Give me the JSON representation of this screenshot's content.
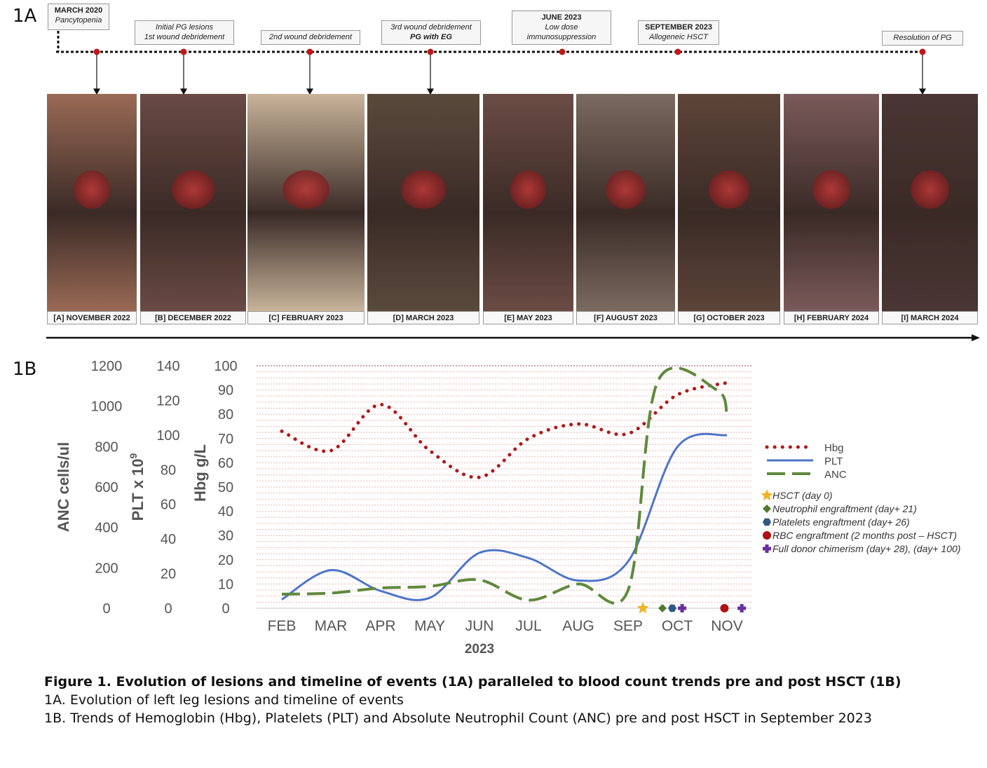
{
  "panel_a_label": "1A",
  "panel_b_label": "1B",
  "events": [
    {
      "title": "MARCH 2020",
      "subtitle": "Pancytopenia"
    },
    {
      "title": "",
      "line1": "Initial PG lesions",
      "line2": "1st wound debridement"
    },
    {
      "title": "",
      "line1": "2nd wound debridement",
      "line2": ""
    },
    {
      "title": "",
      "line1": "3rd wound debridement",
      "line2": "PG with EG"
    },
    {
      "title": "JUNE 2023",
      "line1": "Low dose",
      "line2": "immunosuppression"
    },
    {
      "title": "SEPTEMBER 2023",
      "subtitle": "Allogeneic HSCT"
    },
    {
      "title": "",
      "line1": "Resolution of PG",
      "line2": ""
    }
  ],
  "photos": [
    {
      "label": "[A] NOVEMBER 2022",
      "color": "#9a6a55"
    },
    {
      "label": "[B] DECEMBER 2022",
      "color": "#6a4a44"
    },
    {
      "label": "[C] FEBRUARY 2023",
      "color": "#c8b49a"
    },
    {
      "label": "[D] MARCH 2023",
      "color": "#5a4a3c"
    },
    {
      "label": "[E] MAY 2023",
      "color": "#6b4c44"
    },
    {
      "label": "[F] AUGUST 2023",
      "color": "#7a6a60"
    },
    {
      "label": "[G] OCTOBER 2023",
      "color": "#5c4538"
    },
    {
      "label": "[H] FEBRUARY 2024",
      "color": "#7a5a5a"
    },
    {
      "label": "[I] MARCH 2024",
      "color": "#4a3634"
    }
  ],
  "chart_data": {
    "type": "line",
    "categories": [
      "FEB",
      "MAR",
      "APR",
      "MAY",
      "JUN",
      "JUL",
      "AUG",
      "SEP",
      "OCT",
      "NOV"
    ],
    "xlabel": "2023",
    "axes": [
      {
        "label": "ANC cells/ul",
        "ticks": [
          "1200",
          "1000",
          "800",
          "600",
          "400",
          "200",
          "0"
        ]
      },
      {
        "label": "PLT x 10",
        "superscript": "9",
        "ticks": [
          "140",
          "120",
          "100",
          "80",
          "60",
          "40",
          "20",
          "0"
        ]
      },
      {
        "label": "Hbg g/L",
        "ticks": [
          "100",
          "90",
          "80",
          "70",
          "60",
          "50",
          "40",
          "30",
          "20",
          "10",
          "0"
        ]
      }
    ],
    "ylim": [
      0,
      100
    ],
    "series": [
      {
        "name": "Hbg",
        "axis": "Hbg g/L",
        "color": "#b01818",
        "style": "dotted",
        "x": [
          0,
          1,
          2,
          3,
          4,
          5,
          6,
          7,
          8,
          9
        ],
        "y": [
          73,
          65,
          84,
          65,
          54,
          70,
          76,
          72,
          88,
          93
        ]
      },
      {
        "name": "PLT",
        "axis": "PLT x 10^9",
        "color": "#4d75c8",
        "style": "solid",
        "x": [
          0,
          1,
          2,
          3,
          4,
          5,
          6,
          7,
          8,
          9
        ],
        "y": [
          5,
          22,
          10,
          6,
          32,
          29,
          16,
          27,
          93,
          100
        ]
      },
      {
        "name": "ANC",
        "axis": "ANC cells/ul",
        "color": "#5e8a3c",
        "style": "dashed",
        "x": [
          0,
          1,
          2,
          3,
          4,
          5,
          6,
          7,
          7.6,
          8.8,
          9
        ],
        "y": [
          70,
          75,
          100,
          108,
          140,
          40,
          120,
          90,
          1120,
          1080,
          950
        ]
      }
    ],
    "markers": [
      {
        "name": "HSCT (day 0)",
        "x": 7.3,
        "color": "#f0b429",
        "shape": "star"
      },
      {
        "name": "Neutrophil engraftment (day+ 21)",
        "x": 7.7,
        "color": "#4f7a2d",
        "shape": "diamond"
      },
      {
        "name": "Platelets engraftment (day+ 26)",
        "x": 7.9,
        "color": "#2e5a84",
        "shape": "hexagon"
      },
      {
        "name": "RBC engraftment (2 months post – HSCT)",
        "x": 8.95,
        "color": "#b01010",
        "shape": "circle"
      },
      {
        "name": "Full donor chimerism (day+ 28), (day+ 100)",
        "x": [
          8.1,
          9.3
        ],
        "color": "#6a2fa0",
        "shape": "cross"
      }
    ],
    "grid": true
  },
  "caption": {
    "title": "Figure 1.   Evolution of lesions and timeline of events (1A) paralleled to blood count trends pre and post HSCT (1B)",
    "line1": "1A. Evolution of left leg lesions and timeline of events",
    "line2": "1B. Trends of Hemoglobin (Hbg), Platelets (PLT) and Absolute Neutrophil Count (ANC) pre and post HSCT in September 2023"
  }
}
